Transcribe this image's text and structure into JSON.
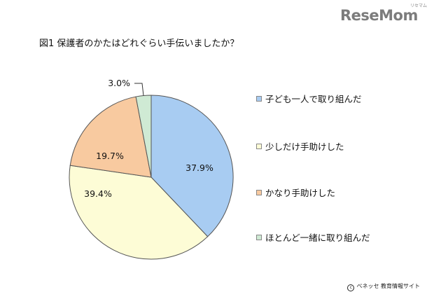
{
  "brand": {
    "logo_text": "ReseMom",
    "logo_kana": "リセマム"
  },
  "chart_data": {
    "type": "pie",
    "title": "図1  保護者のかたはどれぐらい手伝いましたか？",
    "slices": [
      {
        "label": "子ども一人で取り組んだ",
        "value": 37.9,
        "value_label": "37.9%",
        "color": "#a8ccf2"
      },
      {
        "label": "少しだけ手助けした",
        "value": 39.4,
        "value_label": "39.4%",
        "color": "#fdfcd6"
      },
      {
        "label": "かなり手助けした",
        "value": 19.7,
        "value_label": "19.7%",
        "color": "#f8caa0"
      },
      {
        "label": "ほとんど一緒に取り組んだ",
        "value": 3.0,
        "value_label": "3.0%",
        "color": "#cfead4"
      }
    ],
    "start": "12 o'clock",
    "direction": "clockwise",
    "legend_position": "right"
  },
  "footer": {
    "copyright_symbol": "c",
    "copyright_text": "ベネッセ 教育情報サイト"
  }
}
